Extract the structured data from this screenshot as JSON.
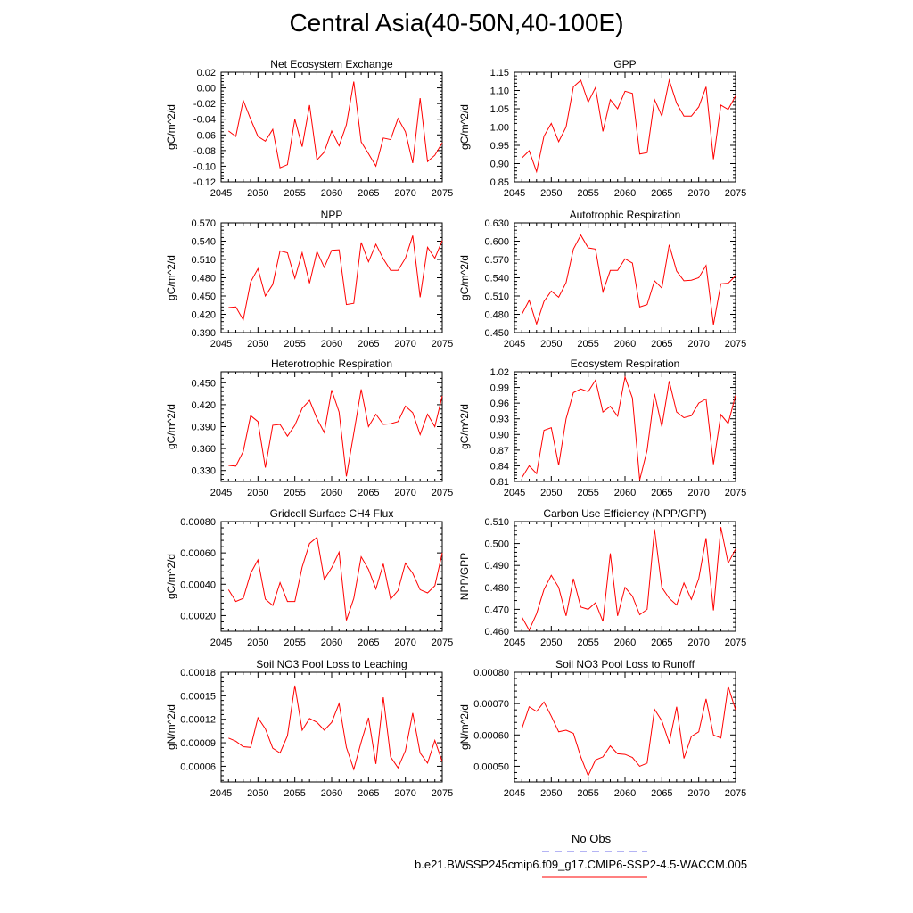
{
  "title": "Central Asia(40-50N,40-100E)",
  "colors": {
    "series": "#ff0000",
    "obs": "#6a6ae8",
    "axis": "#000000"
  },
  "legend": {
    "obs_label": "No Obs",
    "model_label": "b.e21.BWSSP245cmip6.f09_g17.CMIP6-SSP2-4.5-WACCM.005"
  },
  "chart_data": [
    {
      "type": "line",
      "title": "Net Ecosystem Exchange",
      "xlabel": "",
      "ylabel": "gC/m^2/d",
      "xlim": [
        2045,
        2075
      ],
      "ylim": [
        -0.12,
        0.02
      ],
      "xticks": [
        2045,
        2050,
        2055,
        2060,
        2065,
        2070,
        2075
      ],
      "yticks": [
        -0.12,
        -0.1,
        -0.08,
        -0.06,
        -0.04,
        -0.02,
        0.0,
        0.02
      ],
      "ytick_labels": [
        "-0.12",
        "-0.10",
        "-0.08",
        "-0.06",
        "-0.04",
        "-0.02",
        "0.00",
        "0.02"
      ],
      "x": [
        2046,
        2047,
        2048,
        2049,
        2050,
        2051,
        2052,
        2053,
        2054,
        2055,
        2056,
        2057,
        2058,
        2059,
        2060,
        2061,
        2062,
        2063,
        2064,
        2065,
        2066,
        2067,
        2068,
        2069,
        2070,
        2071,
        2072,
        2073,
        2074,
        2075
      ],
      "values": [
        -0.055,
        -0.062,
        -0.016,
        -0.04,
        -0.062,
        -0.068,
        -0.053,
        -0.102,
        -0.098,
        -0.04,
        -0.075,
        -0.022,
        -0.092,
        -0.082,
        -0.055,
        -0.074,
        -0.047,
        0.008,
        -0.069,
        -0.084,
        -0.1,
        -0.064,
        -0.066,
        -0.039,
        -0.056,
        -0.096,
        -0.013,
        -0.094,
        -0.086,
        -0.07
      ]
    },
    {
      "type": "line",
      "title": "GPP",
      "xlabel": "",
      "ylabel": "gC/m^2/d",
      "xlim": [
        2045,
        2075
      ],
      "ylim": [
        0.85,
        1.15
      ],
      "xticks": [
        2045,
        2050,
        2055,
        2060,
        2065,
        2070,
        2075
      ],
      "yticks": [
        0.85,
        0.9,
        0.95,
        1.0,
        1.05,
        1.1,
        1.15
      ],
      "ytick_labels": [
        "0.85",
        "0.90",
        "0.95",
        "1.00",
        "1.05",
        "1.10",
        "1.15"
      ],
      "x": [
        2046,
        2047,
        2048,
        2049,
        2050,
        2051,
        2052,
        2053,
        2054,
        2055,
        2056,
        2057,
        2058,
        2059,
        2060,
        2061,
        2062,
        2063,
        2064,
        2065,
        2066,
        2067,
        2068,
        2069,
        2070,
        2071,
        2072,
        2073,
        2074,
        2075
      ],
      "values": [
        0.915,
        0.935,
        0.878,
        0.975,
        1.01,
        0.96,
        1.0,
        1.11,
        1.128,
        1.068,
        1.108,
        0.988,
        1.075,
        1.05,
        1.098,
        1.092,
        0.926,
        0.93,
        1.075,
        1.03,
        1.128,
        1.065,
        1.03,
        1.03,
        1.055,
        1.11,
        0.912,
        1.06,
        1.048,
        1.085
      ]
    },
    {
      "type": "line",
      "title": "NPP",
      "xlabel": "",
      "ylabel": "gC/m^2/d",
      "xlim": [
        2045,
        2075
      ],
      "ylim": [
        0.39,
        0.57
      ],
      "xticks": [
        2045,
        2050,
        2055,
        2060,
        2065,
        2070,
        2075
      ],
      "yticks": [
        0.39,
        0.42,
        0.45,
        0.48,
        0.51,
        0.54,
        0.57
      ],
      "ytick_labels": [
        "0.390",
        "0.420",
        "0.450",
        "0.480",
        "0.510",
        "0.540",
        "0.570"
      ],
      "x": [
        2046,
        2047,
        2048,
        2049,
        2050,
        2051,
        2052,
        2053,
        2054,
        2055,
        2056,
        2057,
        2058,
        2059,
        2060,
        2061,
        2062,
        2063,
        2064,
        2065,
        2066,
        2067,
        2068,
        2069,
        2070,
        2071,
        2072,
        2073,
        2074,
        2075
      ],
      "values": [
        0.431,
        0.432,
        0.411,
        0.473,
        0.495,
        0.45,
        0.469,
        0.524,
        0.521,
        0.479,
        0.521,
        0.471,
        0.523,
        0.497,
        0.525,
        0.526,
        0.436,
        0.438,
        0.538,
        0.506,
        0.535,
        0.511,
        0.492,
        0.492,
        0.512,
        0.549,
        0.448,
        0.53,
        0.512,
        0.541
      ]
    },
    {
      "type": "line",
      "title": "Autotrophic Respiration",
      "xlabel": "",
      "ylabel": "gC/m^2/d",
      "xlim": [
        2045,
        2075
      ],
      "ylim": [
        0.45,
        0.63
      ],
      "xticks": [
        2045,
        2050,
        2055,
        2060,
        2065,
        2070,
        2075
      ],
      "yticks": [
        0.45,
        0.48,
        0.51,
        0.54,
        0.57,
        0.6,
        0.63
      ],
      "ytick_labels": [
        "0.450",
        "0.480",
        "0.510",
        "0.540",
        "0.570",
        "0.600",
        "0.630"
      ],
      "x": [
        2046,
        2047,
        2048,
        2049,
        2050,
        2051,
        2052,
        2053,
        2054,
        2055,
        2056,
        2057,
        2058,
        2059,
        2060,
        2061,
        2062,
        2063,
        2064,
        2065,
        2066,
        2067,
        2068,
        2069,
        2070,
        2071,
        2072,
        2073,
        2074,
        2075
      ],
      "values": [
        0.48,
        0.503,
        0.464,
        0.501,
        0.518,
        0.508,
        0.532,
        0.587,
        0.61,
        0.589,
        0.587,
        0.517,
        0.552,
        0.552,
        0.571,
        0.564,
        0.492,
        0.496,
        0.535,
        0.523,
        0.594,
        0.551,
        0.535,
        0.536,
        0.54,
        0.56,
        0.463,
        0.53,
        0.531,
        0.543
      ]
    },
    {
      "type": "line",
      "title": "Heterotrophic Respiration",
      "xlabel": "",
      "ylabel": "gC/m^2/d",
      "xlim": [
        2045,
        2075
      ],
      "ylim": [
        0.315,
        0.465
      ],
      "xticks": [
        2045,
        2050,
        2055,
        2060,
        2065,
        2070,
        2075
      ],
      "yticks": [
        0.33,
        0.36,
        0.39,
        0.42,
        0.45
      ],
      "ytick_labels": [
        "0.330",
        "0.360",
        "0.390",
        "0.420",
        "0.450"
      ],
      "x": [
        2046,
        2047,
        2048,
        2049,
        2050,
        2051,
        2052,
        2053,
        2054,
        2055,
        2056,
        2057,
        2058,
        2059,
        2060,
        2061,
        2062,
        2063,
        2064,
        2065,
        2066,
        2067,
        2068,
        2069,
        2070,
        2071,
        2072,
        2073,
        2074,
        2075
      ],
      "values": [
        0.337,
        0.336,
        0.356,
        0.405,
        0.397,
        0.334,
        0.392,
        0.393,
        0.377,
        0.392,
        0.415,
        0.426,
        0.401,
        0.382,
        0.44,
        0.41,
        0.322,
        0.381,
        0.441,
        0.39,
        0.407,
        0.393,
        0.394,
        0.397,
        0.418,
        0.409,
        0.379,
        0.407,
        0.39,
        0.432
      ]
    },
    {
      "type": "line",
      "title": "Ecosystem Respiration",
      "xlabel": "",
      "ylabel": "gC/m^2/d",
      "xlim": [
        2045,
        2075
      ],
      "ylim": [
        0.81,
        1.02
      ],
      "xticks": [
        2045,
        2050,
        2055,
        2060,
        2065,
        2070,
        2075
      ],
      "yticks": [
        0.81,
        0.84,
        0.87,
        0.9,
        0.93,
        0.96,
        0.99,
        1.02
      ],
      "ytick_labels": [
        "0.81",
        "0.84",
        "0.87",
        "0.90",
        "0.93",
        "0.96",
        "0.99",
        "1.02"
      ],
      "x": [
        2046,
        2047,
        2048,
        2049,
        2050,
        2051,
        2052,
        2053,
        2054,
        2055,
        2056,
        2057,
        2058,
        2059,
        2060,
        2061,
        2062,
        2063,
        2064,
        2065,
        2066,
        2067,
        2068,
        2069,
        2070,
        2071,
        2072,
        2073,
        2074,
        2075
      ],
      "values": [
        0.817,
        0.84,
        0.825,
        0.908,
        0.913,
        0.841,
        0.93,
        0.98,
        0.987,
        0.982,
        1.004,
        0.943,
        0.954,
        0.935,
        1.01,
        0.97,
        0.813,
        0.87,
        0.978,
        0.915,
        1.002,
        0.943,
        0.932,
        0.936,
        0.96,
        0.968,
        0.843,
        0.938,
        0.921,
        0.975
      ]
    },
    {
      "type": "line",
      "title": "Gridcell Surface CH4 Flux",
      "xlabel": "",
      "ylabel": "gC/m^2/d",
      "xlim": [
        2045,
        2075
      ],
      "ylim": [
        0.0001,
        0.0008
      ],
      "xticks": [
        2045,
        2050,
        2055,
        2060,
        2065,
        2070,
        2075
      ],
      "yticks": [
        0.0002,
        0.0004,
        0.0006,
        0.0008
      ],
      "ytick_labels": [
        "0.00020",
        "0.00040",
        "0.00060",
        "0.00080"
      ],
      "x": [
        2046,
        2047,
        2048,
        2049,
        2050,
        2051,
        2052,
        2053,
        2054,
        2055,
        2056,
        2057,
        2058,
        2059,
        2060,
        2061,
        2062,
        2063,
        2064,
        2065,
        2066,
        2067,
        2068,
        2069,
        2070,
        2071,
        2072,
        2073,
        2074,
        2075
      ],
      "values": [
        0.000365,
        0.00029,
        0.00031,
        0.00047,
        0.000555,
        0.000305,
        0.000265,
        0.00041,
        0.00029,
        0.00029,
        0.00051,
        0.00066,
        0.0007,
        0.00043,
        0.000505,
        0.000605,
        0.00017,
        0.00031,
        0.000575,
        0.000495,
        0.00037,
        0.00053,
        0.000305,
        0.00036,
        0.000535,
        0.00047,
        0.000365,
        0.000345,
        0.00039,
        0.0006
      ]
    },
    {
      "type": "line",
      "title": "Carbon Use Efficiency (NPP/GPP)",
      "xlabel": "",
      "ylabel": "NPP/GPP",
      "xlim": [
        2045,
        2075
      ],
      "ylim": [
        0.46,
        0.51
      ],
      "xticks": [
        2045,
        2050,
        2055,
        2060,
        2065,
        2070,
        2075
      ],
      "yticks": [
        0.46,
        0.47,
        0.48,
        0.49,
        0.5,
        0.51
      ],
      "ytick_labels": [
        "0.460",
        "0.470",
        "0.480",
        "0.490",
        "0.500",
        "0.510"
      ],
      "x": [
        2046,
        2047,
        2048,
        2049,
        2050,
        2051,
        2052,
        2053,
        2054,
        2055,
        2056,
        2057,
        2058,
        2059,
        2060,
        2061,
        2062,
        2063,
        2064,
        2065,
        2066,
        2067,
        2068,
        2069,
        2070,
        2071,
        2072,
        2073,
        2074,
        2075
      ],
      "values": [
        0.4665,
        0.4605,
        0.468,
        0.479,
        0.4855,
        0.48,
        0.467,
        0.484,
        0.471,
        0.47,
        0.473,
        0.4645,
        0.4955,
        0.467,
        0.48,
        0.476,
        0.4675,
        0.47,
        0.5065,
        0.48,
        0.475,
        0.472,
        0.482,
        0.4745,
        0.484,
        0.5025,
        0.4695,
        0.5075,
        0.491,
        0.4975
      ]
    },
    {
      "type": "line",
      "title": "Soil NO3 Pool Loss to Leaching",
      "xlabel": "",
      "ylabel": "gN/m^2/d",
      "xlim": [
        2045,
        2075
      ],
      "ylim": [
        4e-05,
        0.00018
      ],
      "xticks": [
        2045,
        2050,
        2055,
        2060,
        2065,
        2070,
        2075
      ],
      "yticks": [
        6e-05,
        9e-05,
        0.00012,
        0.00015,
        0.00018
      ],
      "ytick_labels": [
        "0.00006",
        "0.00009",
        "0.00012",
        "0.00015",
        "0.00018"
      ],
      "x": [
        2046,
        2047,
        2048,
        2049,
        2050,
        2051,
        2052,
        2053,
        2054,
        2055,
        2056,
        2057,
        2058,
        2059,
        2060,
        2061,
        2062,
        2063,
        2064,
        2065,
        2066,
        2067,
        2068,
        2069,
        2070,
        2071,
        2072,
        2073,
        2074,
        2075
      ],
      "values": [
        9.6e-05,
        9.2e-05,
        8.5e-05,
        8.4e-05,
        0.000122,
        0.000108,
        8.3e-05,
        7.7e-05,
        9.9e-05,
        0.000163,
        0.000106,
        0.000121,
        0.000116,
        0.000106,
        0.000116,
        0.00014,
        8.4e-05,
        5.6e-05,
        9.1e-05,
        0.000122,
        6.3e-05,
        0.000148,
        7.2e-05,
        5.8e-05,
        8e-05,
        0.000128,
        7.7e-05,
        6.4e-05,
        9.3e-05,
        6.6e-05
      ]
    },
    {
      "type": "line",
      "title": "Soil NO3 Pool Loss to Runoff",
      "xlabel": "",
      "ylabel": "gN/m^2/d",
      "xlim": [
        2045,
        2075
      ],
      "ylim": [
        0.00045,
        0.0008
      ],
      "xticks": [
        2045,
        2050,
        2055,
        2060,
        2065,
        2070,
        2075
      ],
      "yticks": [
        0.0005,
        0.0006,
        0.0007,
        0.0008
      ],
      "ytick_labels": [
        "0.00050",
        "0.00060",
        "0.00070",
        "0.00080"
      ],
      "x": [
        2046,
        2047,
        2048,
        2049,
        2050,
        2051,
        2052,
        2053,
        2054,
        2055,
        2056,
        2057,
        2058,
        2059,
        2060,
        2061,
        2062,
        2063,
        2064,
        2065,
        2066,
        2067,
        2068,
        2069,
        2070,
        2071,
        2072,
        2073,
        2074,
        2075
      ],
      "values": [
        0.00062,
        0.00069,
        0.000675,
        0.000705,
        0.00066,
        0.00061,
        0.000615,
        0.000605,
        0.00053,
        0.00047,
        0.00052,
        0.00053,
        0.000565,
        0.00054,
        0.000538,
        0.000528,
        0.0005,
        0.00051,
        0.000682,
        0.000645,
        0.000575,
        0.00069,
        0.000525,
        0.000595,
        0.00061,
        0.000715,
        0.0006,
        0.00059,
        0.000755,
        0.00068
      ]
    }
  ]
}
